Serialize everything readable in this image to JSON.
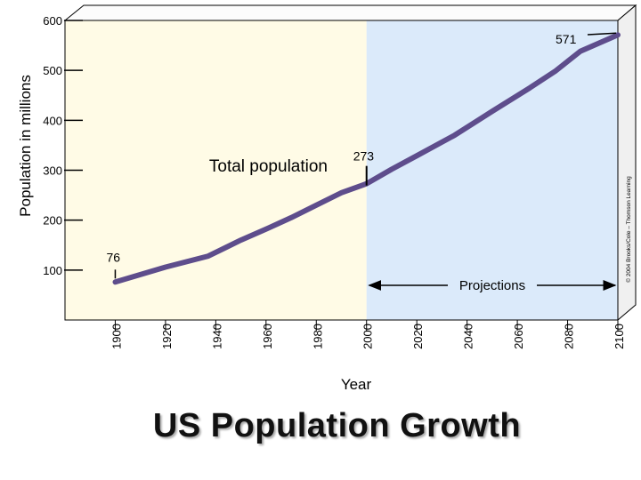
{
  "chart_data": {
    "type": "line",
    "title": "US Population Growth",
    "xlabel": "Year",
    "ylabel": "Population in millions",
    "xlim": [
      1880,
      2100
    ],
    "ylim": [
      0,
      600
    ],
    "x_ticks": [
      1900,
      1920,
      1940,
      1960,
      1980,
      2000,
      2020,
      2040,
      2060,
      2080,
      2100
    ],
    "y_ticks": [
      100,
      200,
      300,
      400,
      500,
      600
    ],
    "grid": false,
    "series": [
      {
        "name": "Total population",
        "x": [
          1900,
          1920,
          1937,
          1950,
          1960,
          1970,
          1980,
          1990,
          2000,
          2010,
          2020,
          2035,
          2050,
          2065,
          2075,
          2085,
          2100
        ],
        "y": [
          76,
          106,
          128,
          160,
          182,
          205,
          230,
          255,
          273,
          302,
          329,
          370,
          418,
          465,
          498,
          538,
          571
        ]
      }
    ],
    "regions": [
      {
        "label": "",
        "from": 1880,
        "to": 2000,
        "color": "#fffbe6"
      },
      {
        "label": "Projections",
        "from": 2000,
        "to": 2100,
        "color": "#dbeafa"
      }
    ],
    "annotations": [
      {
        "text": "76",
        "x": 1900,
        "y": 76
      },
      {
        "text": "273",
        "x": 2000,
        "y": 273
      },
      {
        "text": "571",
        "x": 2100,
        "y": 571
      }
    ],
    "copyright": "© 2004 Brooks/Cole – Thomson Learning",
    "line_color": "#5e4d8c"
  }
}
